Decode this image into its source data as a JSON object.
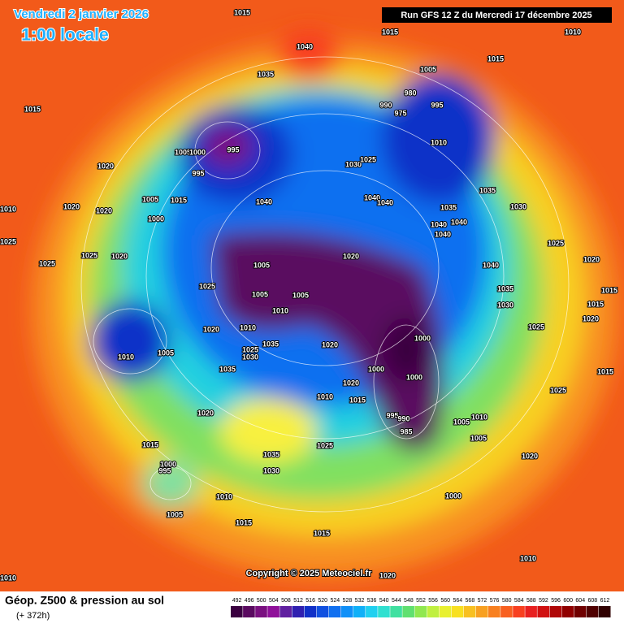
{
  "header": {
    "date": "Vendredi 2 janvier 2026",
    "time": "1:00 locale",
    "run": "Run GFS 12 Z du Mercredi 17 décembre 2025"
  },
  "footer": {
    "title": "Géop. Z500 & pression au sol",
    "subtitle": "(+ 372h)",
    "copyright": "Copyright © 2025 Meteociel.fr"
  },
  "legend": {
    "values": [
      492,
      496,
      500,
      504,
      508,
      512,
      516,
      520,
      524,
      528,
      532,
      536,
      540,
      544,
      548,
      552,
      556,
      560,
      564,
      568,
      572,
      576,
      580,
      584,
      588,
      592,
      596,
      600,
      604,
      608,
      612
    ],
    "colors": [
      "#3a0040",
      "#5a0a60",
      "#7a1080",
      "#90109a",
      "#6020a0",
      "#3020b0",
      "#1030c8",
      "#1050e0",
      "#1070f0",
      "#1090f8",
      "#10b0f8",
      "#20d0f0",
      "#30e0d0",
      "#40e0a0",
      "#60e070",
      "#90e850",
      "#c0f040",
      "#e8f030",
      "#f8e020",
      "#f8c020",
      "#f8a020",
      "#f88020",
      "#f86020",
      "#f84020",
      "#e82020",
      "#d01010",
      "#b00808",
      "#900000",
      "#700000",
      "#500000",
      "#300000"
    ]
  },
  "isobar_labels": [
    "1015",
    "1015",
    "1010",
    "1040",
    "1035",
    "1005",
    "1015",
    "1015",
    "980",
    "990",
    "975",
    "995",
    "995",
    "1005",
    "1000",
    "995",
    "1020",
    "1010",
    "1030",
    "1025",
    "1035",
    "1005",
    "1015",
    "1040",
    "1040",
    "1040",
    "1030",
    "1020",
    "1020",
    "1010",
    "1035",
    "1040",
    "1040",
    "1040",
    "1000",
    "1025",
    "1025",
    "1025",
    "1020",
    "1025",
    "1020",
    "1040",
    "1005",
    "1025",
    "1005",
    "1005",
    "1035",
    "1015",
    "1030",
    "1010",
    "1015",
    "1020",
    "1025",
    "1010",
    "1020",
    "1000",
    "1020",
    "1035",
    "1025",
    "1030",
    "1010",
    "1005",
    "1000",
    "1000",
    "1035",
    "1015",
    "1025",
    "1020",
    "1010",
    "1015",
    "1020",
    "995",
    "990",
    "985",
    "1005",
    "1010",
    "1005",
    "1025",
    "1015",
    "1035",
    "1030",
    "1020",
    "1000",
    "995",
    "1010",
    "1000",
    "1005",
    "1015",
    "1015",
    "1010",
    "1020",
    "1010",
    "1020"
  ]
}
